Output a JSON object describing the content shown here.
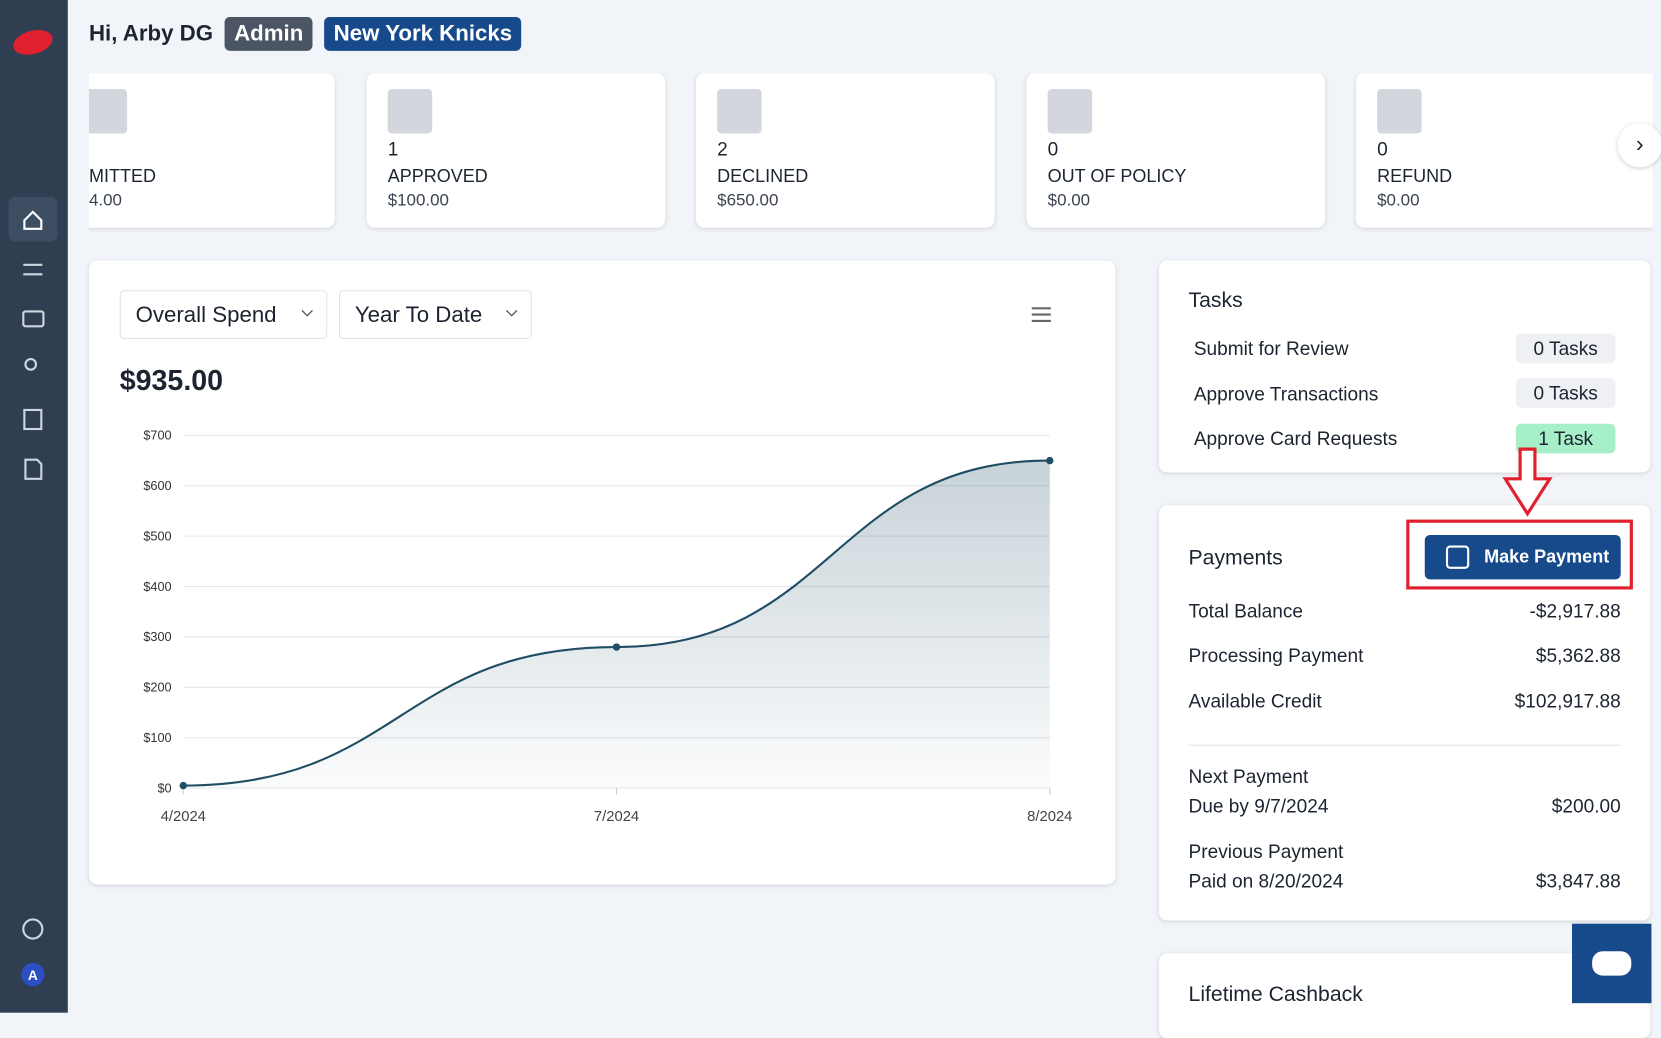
{
  "header": {
    "greeting": "Hi, Arby DG",
    "role": "Admin",
    "team": "New York Knicks"
  },
  "status_cards": [
    {
      "label": "MITTED",
      "amount": "4.00"
    },
    {
      "count": "1",
      "label": "APPROVED",
      "amount": "$100.00"
    },
    {
      "count": "2",
      "label": "DECLINED",
      "amount": "$650.00"
    },
    {
      "count": "0",
      "label": "OUT OF POLICY",
      "amount": "$0.00"
    },
    {
      "count": "0",
      "label": "REFUND",
      "amount": "$0.00"
    }
  ],
  "spend": {
    "metric": "Overall Spend",
    "period": "Year To Date",
    "total": "$935.00",
    "chart": {
      "type": "line",
      "categories": [
        "4/2024",
        "7/2024",
        "8/2024"
      ],
      "values": [
        5,
        280,
        650
      ],
      "color": "#1f4e64",
      "ylim": [
        0,
        700
      ],
      "yticks": [
        {
          "value": 0,
          "label": "$0"
        },
        {
          "value": 100,
          "label": "$100"
        },
        {
          "value": 200,
          "label": "$200"
        },
        {
          "value": 300,
          "label": "$300"
        },
        {
          "value": 400,
          "label": "$400"
        },
        {
          "value": 500,
          "label": "$500"
        },
        {
          "value": 600,
          "label": "$600"
        },
        {
          "value": 700,
          "label": "$700"
        }
      ],
      "grid": true
    }
  },
  "tasks": {
    "title": "Tasks",
    "items": [
      {
        "label": "Submit for Review",
        "badge": "0 Tasks"
      },
      {
        "label": "Approve Transactions",
        "badge": "0 Tasks"
      },
      {
        "label": "Approve Card Requests",
        "badge": "1 Task"
      }
    ]
  },
  "payments": {
    "title": "Payments",
    "button": "Make Payment",
    "rows": [
      {
        "label": "Total Balance",
        "value": "-$2,917.88"
      },
      {
        "label": "Processing Payment",
        "value": "$5,362.88"
      },
      {
        "label": "Available Credit",
        "value": "$102,917.88"
      }
    ],
    "next": {
      "label": "Next Payment",
      "detail": "Due by 9/7/2024",
      "value": "$200.00"
    },
    "previous": {
      "label": "Previous Payment",
      "detail": "Paid on 8/20/2024",
      "value": "$3,847.88"
    }
  },
  "cashback": {
    "title": "Lifetime Cashback"
  },
  "user": {
    "initial": "A"
  }
}
